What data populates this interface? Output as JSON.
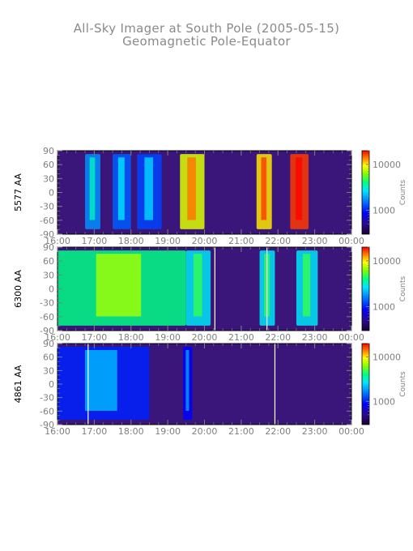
{
  "figure": {
    "title": "All-Sky Imager at South Pole (2005-05-15)",
    "subtitle": "Geomagnetic Pole-Equator"
  },
  "colors": {
    "axis": "#7f7f7f",
    "frame": "#000000",
    "background_plot": "#3b167a",
    "colorbar_stops": [
      "#1a0033",
      "#2b0a8f",
      "#0000ff",
      "#0080ff",
      "#00e5ff",
      "#00ff80",
      "#80ff00",
      "#ffff00",
      "#ff8000",
      "#ff0000"
    ]
  },
  "chart_data": [
    {
      "type": "heatmap",
      "ylabel": "5577 AA",
      "x_ticks": [
        "16:00",
        "17:00",
        "18:00",
        "19:00",
        "20:00",
        "21:00",
        "22:00",
        "23:00",
        "00:00"
      ],
      "y_ticks": [
        "90",
        "60",
        "30",
        "0",
        "-30",
        "-60",
        "-90"
      ],
      "xlim": [
        "16:00",
        "00:00"
      ],
      "ylim": [
        -90,
        90
      ],
      "colorbar": {
        "label": "Counts",
        "ticks": [
          "10000",
          "1000"
        ],
        "scale": "log",
        "range": [
          300,
          20000
        ]
      },
      "intensity_features": [
        {
          "start": "16:45",
          "end": "17:10",
          "level": 0.35
        },
        {
          "start": "17:30",
          "end": "18:00",
          "level": 0.3
        },
        {
          "start": "18:10",
          "end": "18:50",
          "level": 0.28
        },
        {
          "start": "19:20",
          "end": "20:00",
          "level": 0.75
        },
        {
          "start": "21:25",
          "end": "21:50",
          "level": 0.8
        },
        {
          "start": "22:20",
          "end": "22:50",
          "level": 0.95
        }
      ]
    },
    {
      "type": "heatmap",
      "ylabel": "6300 AA",
      "x_ticks": [
        "16:00",
        "17:00",
        "18:00",
        "19:00",
        "20:00",
        "21:00",
        "22:00",
        "23:00",
        "00:00"
      ],
      "y_ticks": [
        "90",
        "60",
        "30",
        "0",
        "-30",
        "-60",
        "-90"
      ],
      "xlim": [
        "16:00",
        "00:00"
      ],
      "ylim": [
        -90,
        90
      ],
      "colorbar": {
        "label": "Counts",
        "ticks": [
          "10000",
          "1000"
        ],
        "scale": "log",
        "range": [
          300,
          20000
        ]
      },
      "data_gaps": [
        "20:17",
        "21:42"
      ],
      "intensity_features": [
        {
          "start": "16:00",
          "end": "19:30",
          "level": 0.55
        },
        {
          "start": "19:30",
          "end": "20:10",
          "level": 0.45
        },
        {
          "start": "21:30",
          "end": "21:55",
          "level": 0.45
        },
        {
          "start": "22:30",
          "end": "23:05",
          "level": 0.45
        }
      ]
    },
    {
      "type": "heatmap",
      "ylabel": "4861 AA",
      "x_ticks": [
        "16:00",
        "17:00",
        "18:00",
        "19:00",
        "20:00",
        "21:00",
        "22:00",
        "23:00",
        "00:00"
      ],
      "y_ticks": [
        "90",
        "60",
        "30",
        "0",
        "-30",
        "-60",
        "-90"
      ],
      "xlim": [
        "16:00",
        "00:00"
      ],
      "ylim": [
        -90,
        90
      ],
      "colorbar": {
        "label": "Counts",
        "ticks": [
          "10000",
          "1000"
        ],
        "scale": "log",
        "range": [
          300,
          20000
        ]
      },
      "data_gaps": [
        "16:50",
        "21:55"
      ],
      "intensity_features": [
        {
          "start": "16:00",
          "end": "18:30",
          "level": 0.25
        },
        {
          "start": "19:25",
          "end": "19:40",
          "level": 0.22
        }
      ]
    }
  ]
}
